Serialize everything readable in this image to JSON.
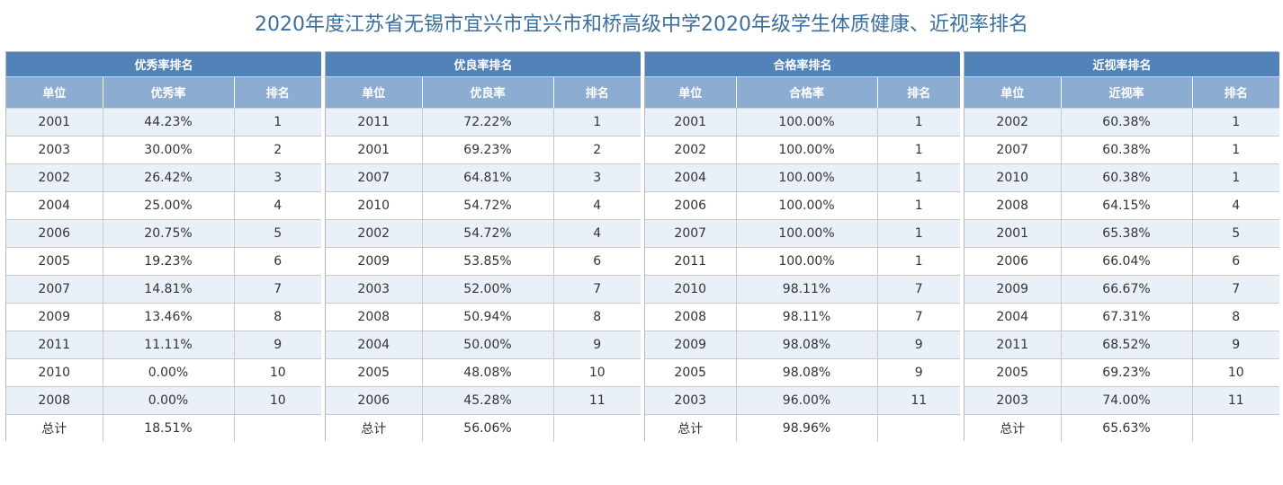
{
  "title": "2020年度江苏省无锡市宜兴市宜兴市和桥高级中学2020年级学生体质健康、近视率排名",
  "panels": [
    {
      "key": "excellent",
      "heading": "优秀率排名",
      "columns": [
        "单位",
        "优秀率",
        "排名"
      ],
      "rows": [
        [
          "2001",
          "44.23%",
          "1"
        ],
        [
          "2003",
          "30.00%",
          "2"
        ],
        [
          "2002",
          "26.42%",
          "3"
        ],
        [
          "2004",
          "25.00%",
          "4"
        ],
        [
          "2006",
          "20.75%",
          "5"
        ],
        [
          "2005",
          "19.23%",
          "6"
        ],
        [
          "2007",
          "14.81%",
          "7"
        ],
        [
          "2009",
          "13.46%",
          "8"
        ],
        [
          "2011",
          "11.11%",
          "9"
        ],
        [
          "2010",
          "0.00%",
          "10"
        ],
        [
          "2008",
          "0.00%",
          "10"
        ]
      ],
      "total_label": "总计",
      "total_value": "18.51%",
      "total_rank": ""
    },
    {
      "key": "good",
      "heading": "优良率排名",
      "columns": [
        "单位",
        "优良率",
        "排名"
      ],
      "rows": [
        [
          "2011",
          "72.22%",
          "1"
        ],
        [
          "2001",
          "69.23%",
          "2"
        ],
        [
          "2007",
          "64.81%",
          "3"
        ],
        [
          "2010",
          "54.72%",
          "4"
        ],
        [
          "2002",
          "54.72%",
          "4"
        ],
        [
          "2009",
          "53.85%",
          "6"
        ],
        [
          "2003",
          "52.00%",
          "7"
        ],
        [
          "2008",
          "50.94%",
          "8"
        ],
        [
          "2004",
          "50.00%",
          "9"
        ],
        [
          "2005",
          "48.08%",
          "10"
        ],
        [
          "2006",
          "45.28%",
          "11"
        ]
      ],
      "total_label": "总计",
      "total_value": "56.06%",
      "total_rank": ""
    },
    {
      "key": "pass",
      "heading": "合格率排名",
      "columns": [
        "单位",
        "合格率",
        "排名"
      ],
      "rows": [
        [
          "2001",
          "100.00%",
          "1"
        ],
        [
          "2002",
          "100.00%",
          "1"
        ],
        [
          "2004",
          "100.00%",
          "1"
        ],
        [
          "2006",
          "100.00%",
          "1"
        ],
        [
          "2007",
          "100.00%",
          "1"
        ],
        [
          "2011",
          "100.00%",
          "1"
        ],
        [
          "2010",
          "98.11%",
          "7"
        ],
        [
          "2008",
          "98.11%",
          "7"
        ],
        [
          "2009",
          "98.08%",
          "9"
        ],
        [
          "2005",
          "98.08%",
          "9"
        ],
        [
          "2003",
          "96.00%",
          "11"
        ]
      ],
      "total_label": "总计",
      "total_value": "98.96%",
      "total_rank": ""
    },
    {
      "key": "myopia",
      "heading": "近视率排名",
      "columns": [
        "单位",
        "近视率",
        "排名"
      ],
      "rows": [
        [
          "2002",
          "60.38%",
          "1"
        ],
        [
          "2007",
          "60.38%",
          "1"
        ],
        [
          "2010",
          "60.38%",
          "1"
        ],
        [
          "2008",
          "64.15%",
          "4"
        ],
        [
          "2001",
          "65.38%",
          "5"
        ],
        [
          "2006",
          "66.04%",
          "6"
        ],
        [
          "2009",
          "66.67%",
          "7"
        ],
        [
          "2004",
          "67.31%",
          "8"
        ],
        [
          "2011",
          "68.52%",
          "9"
        ],
        [
          "2005",
          "69.23%",
          "10"
        ],
        [
          "2003",
          "74.00%",
          "11"
        ]
      ],
      "total_label": "总计",
      "total_value": "65.63%",
      "total_rank": ""
    }
  ]
}
